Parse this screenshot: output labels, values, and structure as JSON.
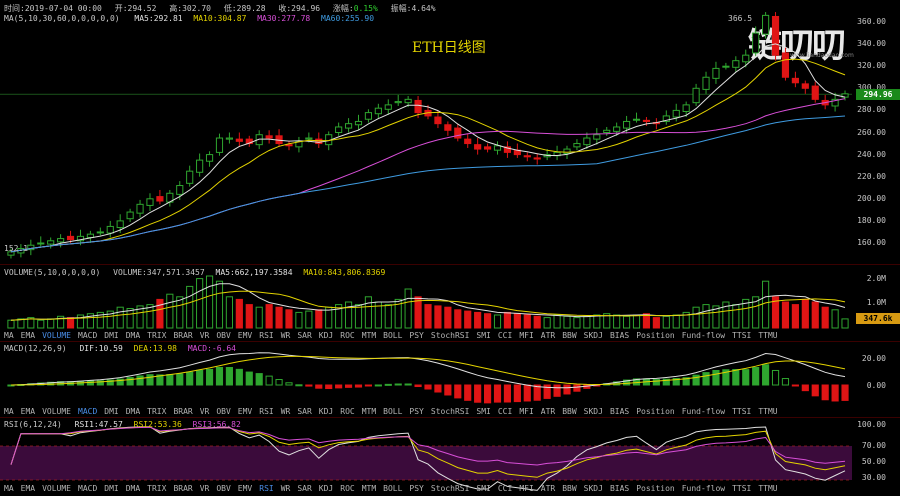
{
  "header": {
    "time": "时间:2019-07-04 00:00",
    "open": "开:294.52",
    "high": "高:302.70",
    "low": "低:289.28",
    "close": "收:294.96",
    "change_label": "涨幅:",
    "change_value": "0.15%",
    "amplitude": "振幅:4.64%"
  },
  "ma_line": {
    "label": "MA(5,10,30,60,0,0,0,0,0)",
    "ma5": "MA5:292.81",
    "ma10": "MA10:304.87",
    "ma30": "MA30:277.78",
    "ma60": "MA60:255.90"
  },
  "chart_title": "ETH日线图",
  "watermark": {
    "text": "链叨叨",
    "url": "www.liandaodao.com"
  },
  "price_markers": {
    "high": "366.5",
    "low": "152.1",
    "current": "294.96"
  },
  "price_axis": [
    "360.00",
    "340.00",
    "320.00",
    "300.00",
    "280.00",
    "260.00",
    "240.00",
    "220.00",
    "200.00",
    "180.00",
    "160.00"
  ],
  "volume": {
    "label": "VOLUME(5,10,0,0,0,0)",
    "vol": "VOLUME:347,571.3457",
    "ma5": "MA5:662,197.3584",
    "ma10": "MA10:843,806.8369",
    "axis": [
      "2.0M",
      "1.0M"
    ],
    "current": "347.6k"
  },
  "macd": {
    "label": "MACD(12,26,9)",
    "dif": "DIF:10.59",
    "dea": "DEA:13.98",
    "macd": "MACD:-6.64",
    "axis": [
      "20.00",
      "0.00"
    ]
  },
  "rsi": {
    "label": "RSI(6,12,24)",
    "rsi1": "RSI1:47.57",
    "rsi2": "RSI2:53.36",
    "rsi3": "RSI3:56.82",
    "axis": [
      "100.00",
      "70.00",
      "50.00",
      "30.00"
    ]
  },
  "indicator_tabs": [
    "MA",
    "EMA",
    "VOLUME",
    "MACD",
    "DMI",
    "DMA",
    "TRIX",
    "BRAR",
    "VR",
    "OBV",
    "EMV",
    "RSI",
    "WR",
    "SAR",
    "KDJ",
    "ROC",
    "MTM",
    "BOLL",
    "PSY",
    "StochRSI",
    "SMI",
    "CCI",
    "MFI",
    "ATR",
    "BBW",
    "SKDJ",
    "BIAS",
    "Position",
    "Fund-flow",
    "TTSI",
    "TTMU"
  ],
  "tab_active": {
    "row1": "VOLUME",
    "row2": "MACD",
    "row3": "RSI"
  },
  "colors": {
    "up": "#2fa62f",
    "down": "#e01515",
    "ma5": "#e0e0e0",
    "ma10": "#e3d300",
    "ma30": "#d84fd8",
    "ma60": "#3f9be0"
  },
  "chart_data": {
    "type": "candlestick",
    "closes": [
      152,
      155,
      158,
      160,
      162,
      164,
      163,
      166,
      168,
      170,
      175,
      180,
      188,
      195,
      200,
      198,
      205,
      212,
      225,
      235,
      240,
      255,
      255,
      252,
      250,
      258,
      255,
      250,
      248,
      252,
      255,
      250,
      258,
      265,
      268,
      270,
      278,
      282,
      285,
      288,
      290,
      278,
      275,
      268,
      262,
      255,
      250,
      245,
      245,
      248,
      242,
      240,
      238,
      236,
      240,
      242,
      245,
      250,
      255,
      258,
      262,
      265,
      270,
      272,
      270,
      268,
      275,
      280,
      285,
      300,
      310,
      318,
      320,
      325,
      330,
      350,
      366,
      330,
      310,
      305,
      300,
      290,
      285,
      290,
      295
    ],
    "volume_m": [
      0.3,
      0.35,
      0.4,
      0.3,
      0.35,
      0.45,
      0.4,
      0.5,
      0.55,
      0.6,
      0.65,
      0.8,
      0.75,
      0.85,
      0.9,
      1.1,
      1.3,
      1.2,
      1.6,
      1.9,
      2.0,
      1.8,
      1.2,
      1.1,
      0.9,
      0.8,
      0.9,
      0.8,
      0.7,
      0.6,
      0.65,
      0.7,
      0.8,
      0.9,
      1.0,
      0.9,
      1.2,
      1.0,
      0.9,
      1.1,
      1.5,
      1.2,
      0.9,
      0.85,
      0.8,
      0.7,
      0.65,
      0.6,
      0.55,
      0.5,
      0.6,
      0.55,
      0.5,
      0.45,
      0.4,
      0.5,
      0.45,
      0.4,
      0.45,
      0.5,
      0.55,
      0.5,
      0.45,
      0.5,
      0.55,
      0.4,
      0.45,
      0.5,
      0.6,
      0.8,
      0.9,
      0.85,
      1.0,
      0.9,
      1.1,
      1.2,
      1.8,
      1.2,
      1.0,
      0.9,
      1.1,
      1.0,
      0.8,
      0.7,
      0.35
    ]
  }
}
